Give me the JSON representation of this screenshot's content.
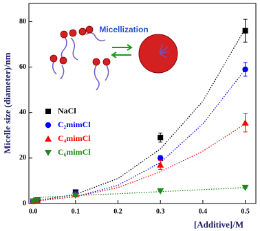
{
  "chart_data": {
    "type": "scatter",
    "x_label": "[Additive]/M",
    "y_label": "Micelle size (diameter)/nm",
    "annotation": "Micellization",
    "x": [
      0,
      0.01,
      0.1,
      0.3,
      0.5
    ],
    "fit_x": [
      0,
      0.1,
      0.2,
      0.3,
      0.4,
      0.5
    ],
    "series": [
      {
        "name": "NaCl",
        "color": "#000000",
        "marker": "square",
        "values": [
          1,
          1.5,
          5,
          29,
          76
        ],
        "errors": [
          0.5,
          0.5,
          1,
          2,
          5
        ],
        "fit": [
          1,
          4,
          11,
          24,
          45,
          77
        ]
      },
      {
        "name": "C₂mimCl",
        "color": "#0000ff",
        "marker": "circle",
        "values": [
          1,
          1.3,
          4.5,
          20,
          59
        ],
        "errors": [
          0.5,
          0.5,
          0.5,
          1,
          3
        ],
        "fit": [
          1,
          3,
          8,
          18,
          35,
          59
        ]
      },
      {
        "name": "C₄mimCl",
        "color": "#ff0000",
        "marker": "triangle-up",
        "values": [
          1,
          1.2,
          4,
          17,
          35.5
        ],
        "errors": [
          0.5,
          0.5,
          0.5,
          2,
          4
        ],
        "fit": [
          1,
          3,
          7,
          14,
          23,
          35
        ]
      },
      {
        "name": "C₆mimCl",
        "color": "#1a8a1a",
        "marker": "triangle-down",
        "values": [
          1,
          1.2,
          3.5,
          5.5,
          7
        ],
        "errors": [
          0.3,
          0.3,
          0.3,
          0.3,
          0.3
        ],
        "fit": [
          2.5,
          3.5,
          4.3,
          5.2,
          6.1,
          7
        ]
      }
    ],
    "xlim": [
      -0.01,
      0.525
    ],
    "ylim": [
      0,
      88
    ],
    "xticks": [
      {
        "value": 0,
        "label": "0.0"
      },
      0.1,
      0.2,
      0.3,
      0.4,
      0.5
    ],
    "yticks": [
      0,
      20,
      40,
      60,
      80
    ]
  }
}
